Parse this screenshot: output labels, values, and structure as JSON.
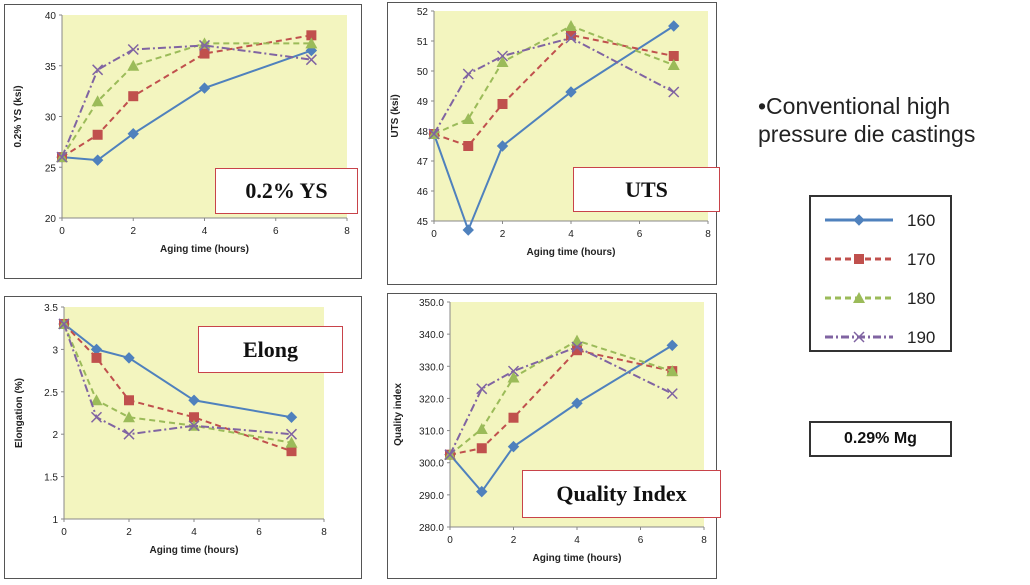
{
  "colors": {
    "plot_bg": "#f3f5bf",
    "s160": "#4f81bd",
    "s170": "#c0504d",
    "s180": "#9bbb59",
    "s190": "#8064a2",
    "tag_border": "#c8434a"
  },
  "bullet_text": "•Conventional high pressure die castings",
  "alloy_label": "0.29% Mg",
  "legend": {
    "entries": [
      {
        "label": "160",
        "marker": "diamond",
        "dash": "solid",
        "color": "#4f81bd"
      },
      {
        "label": "170",
        "marker": "square",
        "dash": "dashed",
        "color": "#c0504d"
      },
      {
        "label": "180",
        "marker": "triangle",
        "dash": "dashed",
        "color": "#9bbb59"
      },
      {
        "label": "190",
        "marker": "x",
        "dash": "dashdot",
        "color": "#8064a2"
      }
    ]
  },
  "chart_data": [
    {
      "type": "line",
      "title": "0.2% YS",
      "xlabel": "Aging time (hours)",
      "ylabel": "0.2% YS (ksi)",
      "xlim": [
        0,
        8
      ],
      "ylim": [
        20,
        40
      ],
      "xticks": [
        "0",
        "2",
        "4",
        "6",
        "8"
      ],
      "yticks": [
        "20",
        "25",
        "30",
        "35",
        "40"
      ],
      "x": [
        0,
        1,
        2,
        4,
        7
      ],
      "series": [
        {
          "name": "160",
          "values": [
            26.0,
            25.7,
            28.3,
            32.8,
            36.5
          ]
        },
        {
          "name": "170",
          "values": [
            26.0,
            28.2,
            32.0,
            36.2,
            38.0
          ]
        },
        {
          "name": "180",
          "values": [
            26.0,
            31.5,
            35.0,
            37.2,
            37.2
          ]
        },
        {
          "name": "190",
          "values": [
            26.0,
            34.6,
            36.6,
            37.0,
            35.6
          ]
        }
      ]
    },
    {
      "type": "line",
      "title": "UTS",
      "xlabel": "Aging time (hours)",
      "ylabel": "UTS (ksi)",
      "xlim": [
        0,
        8
      ],
      "ylim": [
        45,
        52
      ],
      "xticks": [
        "0",
        "2",
        "4",
        "6",
        "8"
      ],
      "yticks": [
        "45",
        "46",
        "47",
        "48",
        "49",
        "50",
        "51",
        "52"
      ],
      "x": [
        0,
        1,
        2,
        4,
        7
      ],
      "series": [
        {
          "name": "160",
          "values": [
            47.9,
            44.7,
            47.5,
            49.3,
            51.5
          ]
        },
        {
          "name": "170",
          "values": [
            47.9,
            47.5,
            48.9,
            51.2,
            50.5
          ]
        },
        {
          "name": "180",
          "values": [
            47.9,
            48.4,
            50.3,
            51.5,
            50.2
          ]
        },
        {
          "name": "190",
          "values": [
            47.9,
            49.9,
            50.5,
            51.1,
            49.3
          ]
        }
      ]
    },
    {
      "type": "line",
      "title": "Elong",
      "xlabel": "Aging time (hours)",
      "ylabel": "Elongation (%)",
      "xlim": [
        0,
        8
      ],
      "ylim": [
        1,
        3.5
      ],
      "xticks": [
        "0",
        "2",
        "4",
        "6",
        "8"
      ],
      "yticks": [
        "1",
        "1.5",
        "2",
        "2.5",
        "3",
        "3.5"
      ],
      "x": [
        0,
        1,
        2,
        4,
        7
      ],
      "series": [
        {
          "name": "160",
          "values": [
            3.3,
            3.0,
            2.9,
            2.4,
            2.2
          ]
        },
        {
          "name": "170",
          "values": [
            3.3,
            2.9,
            2.4,
            2.2,
            1.8
          ]
        },
        {
          "name": "180",
          "values": [
            3.3,
            2.4,
            2.2,
            2.1,
            1.9
          ]
        },
        {
          "name": "190",
          "values": [
            3.3,
            2.2,
            2.0,
            2.1,
            2.0
          ]
        }
      ]
    },
    {
      "type": "line",
      "title": "Quality Index",
      "xlabel": "Aging time (hours)",
      "ylabel": "Quality index",
      "xlim": [
        0,
        8
      ],
      "ylim": [
        280,
        350
      ],
      "xticks": [
        "0",
        "2",
        "4",
        "6",
        "8"
      ],
      "yticks": [
        "280.0",
        "290.0",
        "300.0",
        "310.0",
        "320.0",
        "330.0",
        "340.0",
        "350.0"
      ],
      "x": [
        0,
        1,
        2,
        4,
        7
      ],
      "series": [
        {
          "name": "160",
          "values": [
            302.5,
            291.0,
            305.0,
            318.5,
            336.5
          ]
        },
        {
          "name": "170",
          "values": [
            302.5,
            304.5,
            314.0,
            335.0,
            328.5
          ]
        },
        {
          "name": "180",
          "values": [
            302.5,
            310.5,
            326.5,
            338.0,
            328.5
          ]
        },
        {
          "name": "190",
          "values": [
            302.5,
            323.0,
            328.5,
            336.0,
            321.5
          ]
        }
      ]
    }
  ]
}
